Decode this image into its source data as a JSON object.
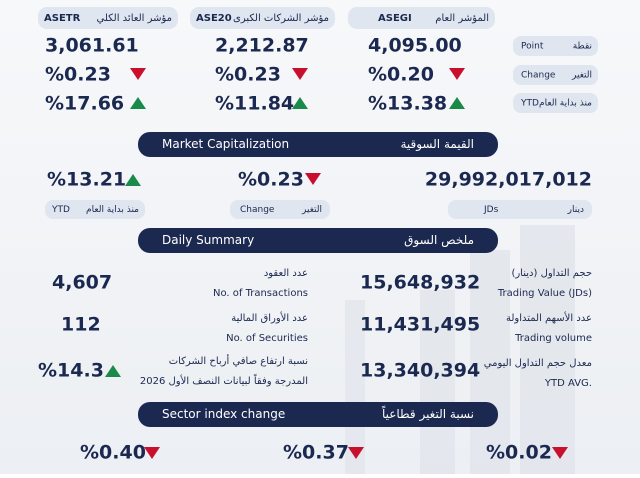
{
  "indices": {
    "columns": [
      {
        "name_ar": "مؤشر العائد الكلي",
        "code": "ASETR",
        "point": "3,061.61",
        "change": "%0.23",
        "ytd": "%17.66"
      },
      {
        "name_ar": "مؤشر الشركات الكبرى",
        "code": "ASE20",
        "point": "2,212.87",
        "change": "%0.23",
        "ytd": "%11.84"
      },
      {
        "name_ar": "المؤشر العام",
        "code": "ASEGI",
        "point": "4,095.00",
        "change": "%0.20",
        "ytd": "%13.38"
      }
    ],
    "row_labels": [
      {
        "en": "Point",
        "ar": "نقطة"
      },
      {
        "en": "Change",
        "ar": "التغير"
      },
      {
        "en": "YTD",
        "ar": "منذ بداية العام"
      }
    ]
  },
  "market_cap": {
    "title_en": "Market Capitalization",
    "title_ar": "القيمة السوقية",
    "ytd": "%13.21",
    "ytd_label_en": "YTD",
    "ytd_label_ar": "منذ بداية العام",
    "change": "%0.23",
    "change_label_en": "Change",
    "change_label_ar": "التغير",
    "value": "29,992,017,012",
    "unit_en": "JDs",
    "unit_ar": "دينار"
  },
  "daily_summary": {
    "title_en": "Daily Summary",
    "title_ar": "ملخص السوق",
    "left": [
      {
        "value": "4,607",
        "lines": [
          "عدد العقود",
          "No. of Transactions"
        ]
      },
      {
        "value": "112",
        "lines": [
          "عدد الأوراق المالية",
          "No. of Securities"
        ]
      },
      {
        "value": "%14.3",
        "lines": [
          "نسبة ارتفاع صافي  أرباح الشركات",
          "المدرجة وفقاً لبيانات النصف الأول 2026"
        ]
      }
    ],
    "right": [
      {
        "value": "15,648,932",
        "lines": [
          "حجم التداول (دينار)",
          "Trading Value (JDs)"
        ]
      },
      {
        "value": "11,431,495",
        "lines": [
          "عدد الأسهم المتداولة",
          "Trading volume"
        ]
      },
      {
        "value": "13,340,394",
        "lines": [
          "معدل حجم التداول اليومي",
          "YTD AVG."
        ]
      }
    ]
  },
  "sector": {
    "title_en": "Sector index change",
    "title_ar": "نسبة التغير قطاعياً",
    "values": [
      "%0.40",
      "%0.37",
      "%0.02"
    ]
  }
}
